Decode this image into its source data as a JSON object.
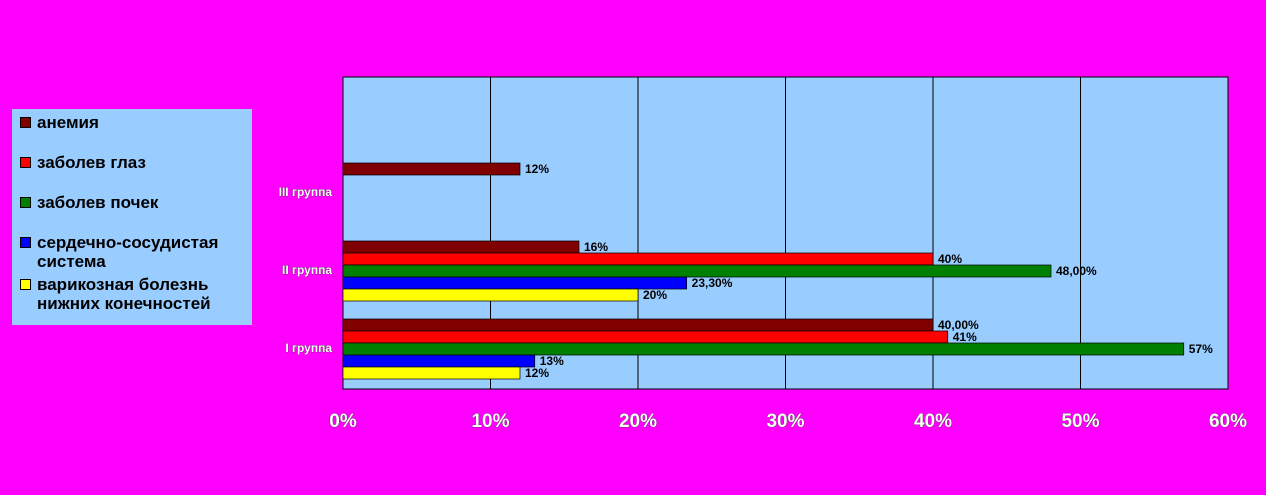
{
  "chart_data": {
    "type": "barh",
    "categories": [
      "I группа",
      "II группа",
      "III группа"
    ],
    "series": [
      {
        "name": "анемия",
        "color": "#800000",
        "values": [
          40,
          16,
          12
        ],
        "value_labels": [
          "40,00%",
          "16%",
          "12%"
        ]
      },
      {
        "name": "заболев глаз",
        "color": "#ff0000",
        "values": [
          41,
          40,
          null
        ],
        "value_labels": [
          "41%",
          "40%",
          null
        ]
      },
      {
        "name": "заболев почек",
        "color": "#008000",
        "values": [
          57,
          48,
          null
        ],
        "value_labels": [
          "57%",
          "48,00%",
          null
        ]
      },
      {
        "name": "сердечно-сосудистая система",
        "color": "#0000ff",
        "values": [
          13,
          23.3,
          null
        ],
        "value_labels": [
          "13%",
          "23,30%",
          null
        ]
      },
      {
        "name": "варикозная болезнь нижних конечностей",
        "color": "#ffff00",
        "values": [
          12,
          20,
          null
        ],
        "value_labels": [
          "12%",
          "20%",
          null
        ]
      }
    ],
    "xlim": [
      0,
      60
    ],
    "xticks": [
      {
        "value": 0,
        "label": "0%"
      },
      {
        "value": 10,
        "label": "10%"
      },
      {
        "value": 20,
        "label": "20%"
      },
      {
        "value": 30,
        "label": "30%"
      },
      {
        "value": 40,
        "label": "40%"
      },
      {
        "value": 50,
        "label": "50%"
      },
      {
        "value": 60,
        "label": "60%"
      }
    ],
    "grid": true
  }
}
